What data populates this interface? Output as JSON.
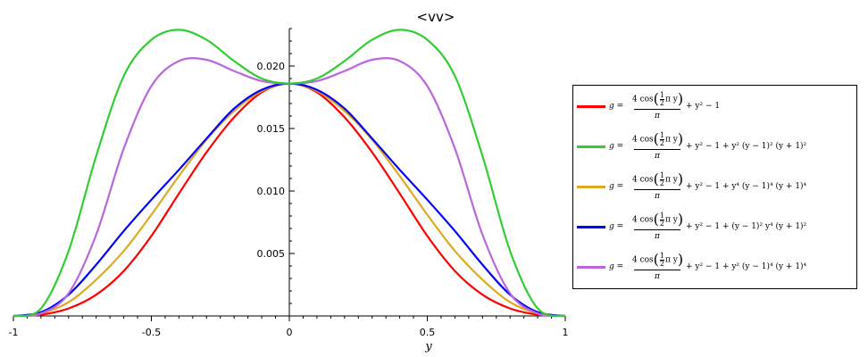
{
  "chart_data": {
    "type": "line",
    "title": "<vv>",
    "xlabel": "y",
    "ylabel": "",
    "xlim": [
      -1,
      1
    ],
    "ylim": [
      0,
      0.023
    ],
    "x_ticks": [
      "-1",
      "-0.5",
      "0",
      "0.5",
      "1"
    ],
    "y_ticks": [
      "0.005",
      "0.010",
      "0.015",
      "0.020"
    ],
    "grid": false,
    "legend_position": "right",
    "x": [
      -1,
      -0.9,
      -0.8,
      -0.7,
      -0.6,
      -0.5,
      -0.4,
      -0.3,
      -0.2,
      -0.1,
      0,
      0.1,
      0.2,
      0.3,
      0.4,
      0.5,
      0.6,
      0.7,
      0.8,
      0.9,
      1
    ],
    "series": [
      {
        "color": "#ff0000",
        "values": [
          0,
          0.0001,
          0.0006,
          0.0017,
          0.0036,
          0.0064,
          0.0098,
          0.0131,
          0.0159,
          0.0179,
          0.0186,
          0.0179,
          0.0159,
          0.0131,
          0.0098,
          0.0064,
          0.0036,
          0.0017,
          0.0006,
          0.0001,
          0
        ]
      },
      {
        "color": "#33cc33",
        "values": [
          0,
          0.0006,
          0.0052,
          0.0128,
          0.0192,
          0.0221,
          0.0229,
          0.0221,
          0.0204,
          0.019,
          0.0186,
          0.019,
          0.0204,
          0.0221,
          0.0229,
          0.0221,
          0.0192,
          0.0128,
          0.0052,
          0.0006,
          0
        ]
      },
      {
        "color": "#ddaa22",
        "values": [
          0,
          0.0002,
          0.0011,
          0.0029,
          0.0052,
          0.0081,
          0.0112,
          0.0141,
          0.0164,
          0.018,
          0.0186,
          0.018,
          0.0164,
          0.0141,
          0.0112,
          0.0081,
          0.0052,
          0.0029,
          0.0011,
          0.0002,
          0
        ]
      },
      {
        "color": "#0000ff",
        "values": [
          0,
          0.0003,
          0.0017,
          0.0041,
          0.0068,
          0.0093,
          0.0117,
          0.0142,
          0.0166,
          0.0181,
          0.0186,
          0.0181,
          0.0166,
          0.0142,
          0.0117,
          0.0093,
          0.0068,
          0.0041,
          0.0017,
          0.0003,
          0
        ]
      },
      {
        "color": "#bb66dd",
        "values": [
          0,
          0.0002,
          0.0018,
          0.0065,
          0.0134,
          0.0184,
          0.0204,
          0.0205,
          0.0196,
          0.0188,
          0.0186,
          0.0188,
          0.0196,
          0.0205,
          0.0204,
          0.0184,
          0.0134,
          0.0065,
          0.0018,
          0.0002,
          0
        ]
      }
    ]
  },
  "legend": {
    "entries": [
      {
        "color": "#ff0000",
        "lhs": "g =",
        "numerator_pre": "4 cos",
        "half_num": "1",
        "half_den": "2",
        "numerator_post": "π y",
        "denominator": "π",
        "tail": "+ y² − 1"
      },
      {
        "color": "#33cc33",
        "lhs": "g =",
        "numerator_pre": "4 cos",
        "half_num": "1",
        "half_den": "2",
        "numerator_post": "π y",
        "denominator": "π",
        "tail": "+ y² − 1 + y² (y − 1)² (y + 1)²"
      },
      {
        "color": "#ddaa22",
        "lhs": "g =",
        "numerator_pre": "4 cos",
        "half_num": "1",
        "half_den": "2",
        "numerator_post": "π y",
        "denominator": "π",
        "tail": "+ y² − 1 + y⁴ (y − 1)⁴ (y + 1)⁴"
      },
      {
        "color": "#0000ff",
        "lhs": "g =",
        "numerator_pre": "4 cos",
        "half_num": "1",
        "half_den": "2",
        "numerator_post": "π y",
        "denominator": "π",
        "tail": "+ y² − 1 + (y − 1)² y⁴ (y + 1)²"
      },
      {
        "color": "#bb66dd",
        "lhs": "g =",
        "numerator_pre": "4 cos",
        "half_num": "1",
        "half_den": "2",
        "numerator_post": "π y",
        "denominator": "π",
        "tail": "+ y² − 1 + y² (y − 1)⁴ (y + 1)⁴"
      }
    ]
  }
}
